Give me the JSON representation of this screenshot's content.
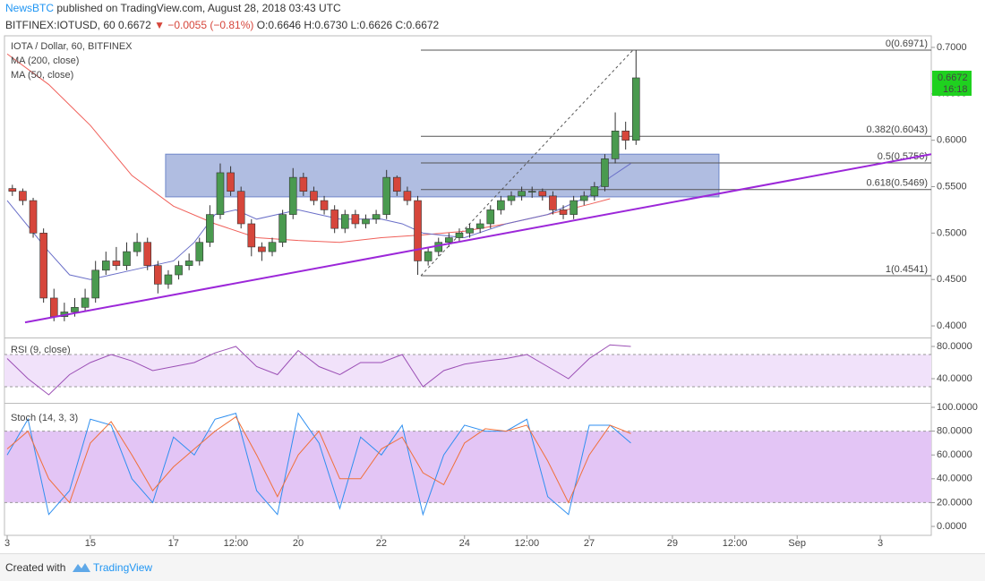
{
  "header": {
    "author": "NewsBTC",
    "published": "published on TradingView.com, August 28, 2018 03:43 UTC",
    "symbol": "BITFINEX:IOTUSD, 60",
    "last": "0.6672",
    "change": "▼ −0.0055 (−0.81%)",
    "ohlc": "O:0.6646 H:0.6730 L:0.6626 C:0.6672"
  },
  "footer": {
    "text": "Created with",
    "brand": "TradingView"
  },
  "chart_data": {
    "type": "candlestick",
    "title": "IOTA / Dollar, 60, BITFINEX",
    "up_color": "#4a9a4f",
    "down_color": "#d6463b",
    "x": [
      0.125,
      0.375,
      0.625,
      0.875,
      1.125,
      1.375,
      1.625,
      1.875,
      2.125,
      2.375,
      2.625,
      2.875,
      3.125,
      3.375,
      3.625,
      3.875,
      4.125,
      4.375,
      4.625,
      4.875,
      5.125,
      5.375,
      5.625,
      5.875,
      6.125,
      6.375,
      6.625,
      6.875,
      7.125,
      7.375,
      7.625,
      7.875,
      8.125,
      8.375,
      8.625,
      8.875,
      9.125,
      9.375,
      9.625,
      9.875,
      10.125,
      10.375,
      10.625,
      10.875,
      11.125,
      11.375,
      11.625,
      11.875,
      12.125,
      12.375,
      12.625,
      12.875,
      13.125,
      13.375,
      13.625,
      13.875,
      14.125,
      14.375,
      14.625,
      14.875,
      15.125
    ],
    "candles": [
      [
        0.548,
        0.552,
        0.54,
        0.545
      ],
      [
        0.545,
        0.548,
        0.53,
        0.535
      ],
      [
        0.535,
        0.538,
        0.495,
        0.5
      ],
      [
        0.5,
        0.505,
        0.425,
        0.43
      ],
      [
        0.43,
        0.44,
        0.405,
        0.41
      ],
      [
        0.41,
        0.425,
        0.405,
        0.415
      ],
      [
        0.415,
        0.43,
        0.41,
        0.42
      ],
      [
        0.42,
        0.44,
        0.415,
        0.43
      ],
      [
        0.43,
        0.47,
        0.425,
        0.46
      ],
      [
        0.46,
        0.48,
        0.455,
        0.47
      ],
      [
        0.47,
        0.485,
        0.46,
        0.465
      ],
      [
        0.465,
        0.49,
        0.46,
        0.48
      ],
      [
        0.48,
        0.5,
        0.475,
        0.49
      ],
      [
        0.49,
        0.495,
        0.46,
        0.465
      ],
      [
        0.465,
        0.47,
        0.435,
        0.445
      ],
      [
        0.445,
        0.46,
        0.44,
        0.455
      ],
      [
        0.455,
        0.47,
        0.45,
        0.465
      ],
      [
        0.465,
        0.478,
        0.46,
        0.47
      ],
      [
        0.47,
        0.495,
        0.465,
        0.49
      ],
      [
        0.49,
        0.53,
        0.485,
        0.52
      ],
      [
        0.52,
        0.575,
        0.515,
        0.565
      ],
      [
        0.565,
        0.572,
        0.54,
        0.545
      ],
      [
        0.545,
        0.55,
        0.505,
        0.51
      ],
      [
        0.51,
        0.515,
        0.475,
        0.485
      ],
      [
        0.485,
        0.49,
        0.47,
        0.48
      ],
      [
        0.48,
        0.495,
        0.475,
        0.49
      ],
      [
        0.49,
        0.525,
        0.485,
        0.52
      ],
      [
        0.52,
        0.57,
        0.515,
        0.56
      ],
      [
        0.56,
        0.565,
        0.54,
        0.545
      ],
      [
        0.545,
        0.55,
        0.53,
        0.535
      ],
      [
        0.535,
        0.54,
        0.52,
        0.525
      ],
      [
        0.525,
        0.53,
        0.5,
        0.505
      ],
      [
        0.505,
        0.525,
        0.5,
        0.52
      ],
      [
        0.52,
        0.525,
        0.505,
        0.51
      ],
      [
        0.51,
        0.52,
        0.505,
        0.515
      ],
      [
        0.515,
        0.525,
        0.51,
        0.52
      ],
      [
        0.52,
        0.568,
        0.515,
        0.56
      ],
      [
        0.56,
        0.562,
        0.54,
        0.545
      ],
      [
        0.545,
        0.55,
        0.53,
        0.535
      ],
      [
        0.535,
        0.54,
        0.455,
        0.47
      ],
      [
        0.47,
        0.485,
        0.465,
        0.48
      ],
      [
        0.48,
        0.495,
        0.475,
        0.49
      ],
      [
        0.49,
        0.5,
        0.485,
        0.495
      ],
      [
        0.495,
        0.505,
        0.49,
        0.5
      ],
      [
        0.5,
        0.51,
        0.495,
        0.505
      ],
      [
        0.505,
        0.515,
        0.5,
        0.51
      ],
      [
        0.51,
        0.53,
        0.505,
        0.525
      ],
      [
        0.525,
        0.54,
        0.52,
        0.535
      ],
      [
        0.535,
        0.545,
        0.53,
        0.54
      ],
      [
        0.54,
        0.55,
        0.535,
        0.545
      ],
      [
        0.545,
        0.55,
        0.538,
        0.545
      ],
      [
        0.545,
        0.548,
        0.535,
        0.54
      ],
      [
        0.54,
        0.545,
        0.52,
        0.525
      ],
      [
        0.525,
        0.53,
        0.515,
        0.52
      ],
      [
        0.52,
        0.54,
        0.515,
        0.535
      ],
      [
        0.535,
        0.545,
        0.53,
        0.54
      ],
      [
        0.54,
        0.555,
        0.535,
        0.55
      ],
      [
        0.55,
        0.585,
        0.545,
        0.58
      ],
      [
        0.58,
        0.63,
        0.575,
        0.61
      ],
      [
        0.61,
        0.62,
        0.59,
        0.6
      ],
      [
        0.6,
        0.6971,
        0.595,
        0.6672
      ]
    ],
    "xlim": [
      -0.065,
      22.226
    ],
    "xticks": [
      {
        "value": 0,
        "label": "3"
      },
      {
        "value": 2,
        "label": "15"
      },
      {
        "value": 4,
        "label": "17"
      },
      {
        "value": 5.5,
        "label": "12:00"
      },
      {
        "value": 7,
        "label": "20"
      },
      {
        "value": 9,
        "label": "22"
      },
      {
        "value": 11,
        "label": "24"
      },
      {
        "value": 12.5,
        "label": "12:00"
      },
      {
        "value": 14,
        "label": "27"
      },
      {
        "value": 16,
        "label": "29"
      },
      {
        "value": 17.5,
        "label": "12:00"
      },
      {
        "value": 19,
        "label": "Sep"
      },
      {
        "value": 21,
        "label": "3"
      }
    ],
    "ylim": [
      0.3875,
      0.7125
    ],
    "yticks": [
      {
        "value": 0.4,
        "label": "0.4000"
      },
      {
        "value": 0.45,
        "label": "0.4500"
      },
      {
        "value": 0.5,
        "label": "0.5000"
      },
      {
        "value": 0.55,
        "label": "0.5500"
      },
      {
        "value": 0.6,
        "label": "0.6000"
      },
      {
        "value": 0.65,
        "label": "0.6500"
      },
      {
        "value": 0.7,
        "label": "0.7000"
      }
    ],
    "last_price": {
      "value": 0.6672,
      "label": "0.6672"
    },
    "countdown": "16:18",
    "last_color": "#1fd11f",
    "ma200": {
      "name": "MA (200, close)",
      "color": "#f0605a",
      "x": [
        0,
        1,
        2,
        3,
        4,
        5,
        6,
        7,
        8,
        9,
        10,
        11,
        12,
        13,
        14,
        14.5
      ],
      "values": [
        0.693,
        0.66,
        0.616,
        0.562,
        0.529,
        0.51,
        0.495,
        0.492,
        0.49,
        0.495,
        0.498,
        0.502,
        0.51,
        0.52,
        0.531,
        0.537
      ]
    },
    "ma50": {
      "name": "MA (50, close)",
      "color": "#6a6fc8",
      "x": [
        0,
        1,
        1.5,
        2,
        2.5,
        3,
        4,
        4.5,
        5,
        5.5,
        6,
        7,
        7.5,
        8,
        9,
        9.5,
        10,
        11,
        12,
        13,
        14,
        14.5,
        15
      ],
      "values": [
        0.535,
        0.48,
        0.455,
        0.45,
        0.455,
        0.46,
        0.47,
        0.49,
        0.52,
        0.525,
        0.515,
        0.525,
        0.52,
        0.515,
        0.515,
        0.51,
        0.5,
        0.495,
        0.51,
        0.52,
        0.54,
        0.56,
        0.575
      ]
    },
    "trendline": {
      "color": "#9c27d9",
      "x": [
        0.43,
        22.226
      ],
      "values": [
        0.4038,
        0.585
      ]
    },
    "zone": {
      "color": "#6f87c9",
      "x": [
        3.81,
        17.12
      ],
      "values": [
        0.539,
        0.585
      ]
    },
    "fib": {
      "color": "#555555",
      "x": [
        9.95,
        22.226
      ],
      "levels": [
        {
          "value": 0.6971,
          "label": "0(0.6971)"
        },
        {
          "value": 0.6043,
          "label": "0.382(0.6043)"
        },
        {
          "value": 0.5756,
          "label": "0.5(0.5756)"
        },
        {
          "value": 0.5469,
          "label": "0.618(0.5469)"
        },
        {
          "value": 0.4541,
          "label": "1(0.4541)"
        }
      ],
      "diagonal": {
        "x": [
          9.95,
          15.05
        ],
        "values": [
          0.4541,
          0.6971
        ]
      }
    },
    "rsi": {
      "type": "line",
      "title": "RSI (9, close)",
      "color": "#9b4fb5",
      "band": [
        30,
        70
      ],
      "band_color": "#f1e2fa",
      "ylim": [
        10,
        90
      ],
      "yticks": [
        {
          "value": 40,
          "label": "40.0000"
        },
        {
          "value": 80,
          "label": "80.0000"
        }
      ],
      "x": [
        0,
        0.5,
        1,
        1.5,
        2,
        2.5,
        3,
        3.5,
        4,
        4.5,
        5,
        5.5,
        6,
        6.5,
        7,
        7.5,
        8,
        8.5,
        9,
        9.5,
        10,
        10.5,
        11,
        11.5,
        12,
        12.5,
        13,
        13.5,
        14,
        14.5,
        15
      ],
      "values": [
        65,
        40,
        20,
        45,
        60,
        70,
        62,
        50,
        55,
        60,
        72,
        80,
        55,
        45,
        75,
        55,
        45,
        60,
        60,
        70,
        30,
        50,
        58,
        62,
        65,
        70,
        55,
        40,
        65,
        82,
        80
      ]
    },
    "stoch": {
      "type": "line",
      "title": "Stoch (14, 3, 3)",
      "band": [
        20,
        80
      ],
      "band_color": "#e3c5f5",
      "ylim": [
        -7.5,
        103
      ],
      "yticks": [
        {
          "value": 0,
          "label": "0.0000"
        },
        {
          "value": 20,
          "label": "20.0000"
        },
        {
          "value": 40,
          "label": "40.0000"
        },
        {
          "value": 60,
          "label": "60.0000"
        },
        {
          "value": 80,
          "label": "80.0000"
        },
        {
          "value": 100,
          "label": "100.0000"
        }
      ],
      "x": [
        0,
        0.5,
        1,
        1.5,
        2,
        2.5,
        3,
        3.5,
        4,
        4.5,
        5,
        5.5,
        6,
        6.5,
        7,
        7.5,
        8,
        8.5,
        9,
        9.5,
        10,
        10.5,
        11,
        11.5,
        12,
        12.5,
        13,
        13.5,
        14,
        14.5,
        15
      ],
      "series": [
        {
          "color": "#2f8ff0",
          "values": [
            60,
            90,
            10,
            30,
            90,
            85,
            40,
            20,
            75,
            60,
            90,
            95,
            30,
            10,
            95,
            70,
            15,
            75,
            60,
            85,
            10,
            60,
            85,
            80,
            80,
            90,
            25,
            10,
            85,
            85,
            70
          ]
        },
        {
          "color": "#f0703a",
          "values": [
            65,
            80,
            40,
            20,
            70,
            88,
            60,
            30,
            50,
            65,
            80,
            92,
            60,
            25,
            60,
            80,
            40,
            40,
            65,
            75,
            45,
            35,
            70,
            82,
            80,
            85,
            55,
            20,
            60,
            85,
            78
          ]
        }
      ]
    }
  }
}
